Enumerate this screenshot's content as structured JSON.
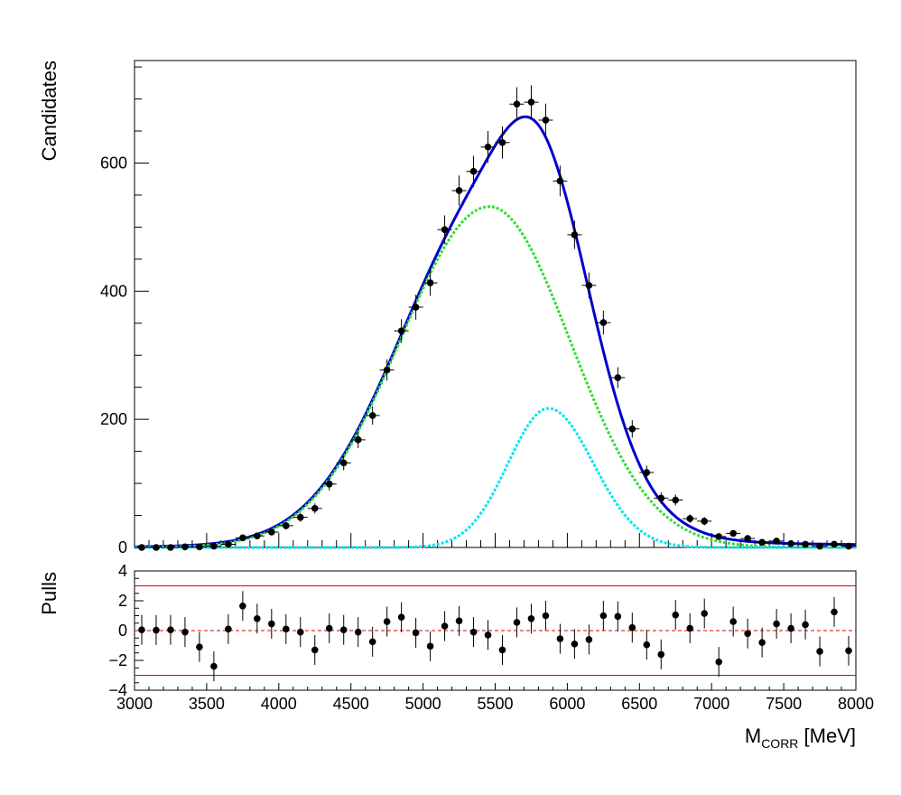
{
  "chart_data": {
    "type": "scatter",
    "x_axis": {
      "label_main": "M",
      "label_sub": "CORR",
      "label_unit": " [MeV]",
      "range": [
        3000,
        8000
      ],
      "ticks": [
        3000,
        3500,
        4000,
        4500,
        5000,
        5500,
        6000,
        6500,
        7000,
        7500,
        8000
      ]
    },
    "top_panel": {
      "ylabel": "Candidates",
      "ylim": [
        0,
        760
      ],
      "yticks": [
        0,
        200,
        400,
        600
      ],
      "bin_width": 100,
      "data": {
        "x": [
          3050,
          3150,
          3250,
          3350,
          3450,
          3550,
          3650,
          3750,
          3850,
          3950,
          4050,
          4150,
          4250,
          4350,
          4450,
          4550,
          4650,
          4750,
          4850,
          4950,
          5050,
          5150,
          5250,
          5350,
          5450,
          5550,
          5650,
          5750,
          5850,
          5950,
          6050,
          6150,
          6250,
          6350,
          6450,
          6550,
          6650,
          6750,
          6850,
          6950,
          7050,
          7150,
          7250,
          7350,
          7450,
          7550,
          7650,
          7750,
          7850,
          7950
        ],
        "y": [
          0,
          0,
          0,
          1,
          1,
          2,
          5,
          15,
          18,
          24,
          34,
          47,
          61,
          99,
          132,
          168,
          206,
          277,
          338,
          375,
          413,
          496,
          557,
          587,
          625,
          632,
          692,
          695,
          667,
          572,
          488,
          409,
          351,
          265,
          185,
          117,
          77,
          74,
          45,
          41,
          17,
          22,
          14,
          8,
          10,
          6,
          5,
          2,
          5,
          2
        ]
      },
      "series": [
        {
          "name": "total_fit",
          "color": "#0000cc",
          "style": "solid",
          "components": [
            {
              "amplitude": 532,
              "mean": 5460,
              "sigma_left": 620,
              "sigma_right": 560
            },
            {
              "amplitude": 217,
              "mean": 5870,
              "sigma_left": 280,
              "sigma_right": 310
            },
            {
              "amplitude": 7,
              "mean": 6450,
              "sigma_left": 1700,
              "sigma_right": 1700
            }
          ]
        },
        {
          "name": "component_1",
          "color": "#33dd33",
          "style": "dotted",
          "components": [
            {
              "amplitude": 532,
              "mean": 5460,
              "sigma_left": 620,
              "sigma_right": 560
            }
          ]
        },
        {
          "name": "component_2",
          "color": "#00e5ee",
          "style": "dotted",
          "components": [
            {
              "amplitude": 217,
              "mean": 5870,
              "sigma_left": 280,
              "sigma_right": 310
            }
          ]
        }
      ]
    },
    "bottom_panel": {
      "ylabel": "Pulls",
      "ylim": [
        -4,
        4
      ],
      "yticks": [
        -4,
        -2,
        0,
        2,
        4
      ],
      "reference_lines": [
        {
          "y": 3,
          "color": "#dd0000",
          "style": "solid"
        },
        {
          "y": -3,
          "color": "#dd0000",
          "style": "solid"
        },
        {
          "y": 0,
          "color": "#dd0000",
          "style": "dashed"
        }
      ],
      "data": {
        "x": [
          3050,
          3150,
          3250,
          3350,
          3450,
          3550,
          3650,
          3750,
          3850,
          3950,
          4050,
          4150,
          4250,
          4350,
          4450,
          4550,
          4650,
          4750,
          4850,
          4950,
          5050,
          5150,
          5250,
          5350,
          5450,
          5550,
          5650,
          5750,
          5850,
          5950,
          6050,
          6150,
          6250,
          6350,
          6450,
          6550,
          6650,
          6750,
          6850,
          6950,
          7050,
          7150,
          7250,
          7350,
          7450,
          7550,
          7650,
          7750,
          7850,
          7950
        ],
        "y": [
          0.05,
          0.03,
          0.05,
          -0.1,
          -1.1,
          -2.4,
          0.1,
          1.65,
          0.8,
          0.45,
          0.1,
          -0.1,
          -1.3,
          0.15,
          0.05,
          -0.1,
          -0.75,
          0.6,
          0.9,
          -0.15,
          -1.05,
          0.3,
          0.65,
          -0.1,
          -0.3,
          -1.3,
          0.55,
          0.8,
          1.0,
          -0.55,
          -0.9,
          -0.6,
          1.0,
          0.95,
          0.2,
          -0.95,
          -1.6,
          1.05,
          0.15,
          1.15,
          -2.1,
          0.6,
          -0.2,
          -0.8,
          0.45,
          0.15,
          0.4,
          -1.4,
          1.25,
          -1.35
        ],
        "error": 1
      }
    }
  }
}
